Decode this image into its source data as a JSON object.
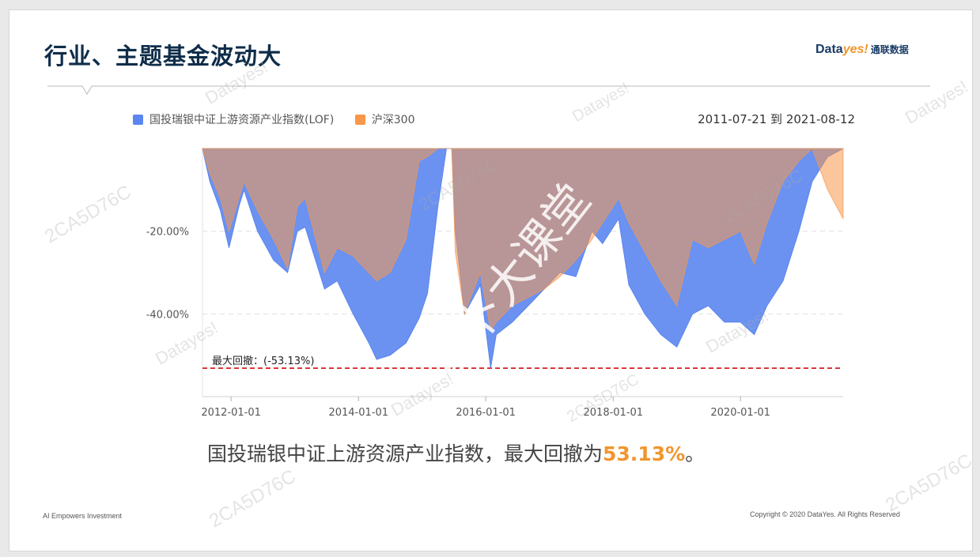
{
  "page": {
    "title": "行业、主题基金波动大",
    "logo": {
      "part1": "Data",
      "part2": "yes!",
      "part3": "通联数据"
    },
    "date_range": "2011-07-21 到 2021-08-12",
    "caption": {
      "text": "国投瑞银中证上游资源产业指数，最大回撤为",
      "highlight": "53.13%",
      "suffix": "。"
    },
    "footer_left": "AI Empowers Investment",
    "footer_right": "Copyright © 2020 DataYes. All Rights Reserved",
    "watermarks": [
      "Datayes!",
      "2CA5D76C"
    ],
    "overlay_watermark": "萝卜大课堂"
  },
  "chart_data": {
    "type": "area",
    "title": "",
    "x_ticks": [
      "2012-01-01",
      "2014-01-01",
      "2016-01-01",
      "2018-01-01",
      "2020-01-01"
    ],
    "y_ticks": [
      "-20.00%",
      "-40.00%"
    ],
    "ylim": [
      -60,
      0
    ],
    "xlim": [
      "2011-07-21",
      "2021-08-12"
    ],
    "grid": "horizontal dashed",
    "legend_position": "top-left",
    "max_drawdown_label": "最大回撤：(-53.13%)",
    "max_drawdown_value": -53.13,
    "series": [
      {
        "name": "国投瑞银中证上游资源产业指数(LOF)",
        "color": "#5b86f0",
        "points": [
          [
            "2011-07-21",
            0
          ],
          [
            "2011-09-01",
            -8
          ],
          [
            "2011-11-01",
            -15
          ],
          [
            "2011-12-20",
            -24
          ],
          [
            "2012-02-15",
            -14
          ],
          [
            "2012-03-15",
            -10
          ],
          [
            "2012-06-01",
            -20
          ],
          [
            "2012-09-01",
            -27
          ],
          [
            "2012-11-20",
            -30
          ],
          [
            "2013-01-15",
            -20
          ],
          [
            "2013-03-01",
            -19
          ],
          [
            "2013-06-20",
            -34
          ],
          [
            "2013-09-01",
            -32
          ],
          [
            "2013-12-01",
            -40
          ],
          [
            "2014-03-01",
            -47
          ],
          [
            "2014-04-15",
            -51
          ],
          [
            "2014-07-01",
            -50
          ],
          [
            "2014-10-01",
            -47
          ],
          [
            "2014-12-15",
            -41
          ],
          [
            "2015-02-01",
            -35
          ],
          [
            "2015-04-01",
            -14
          ],
          [
            "2015-05-20",
            0
          ],
          [
            "2015-06-20",
            0
          ],
          [
            "2015-07-10",
            -20
          ],
          [
            "2015-09-01",
            -40
          ],
          [
            "2015-12-01",
            -33
          ],
          [
            "2016-01-29",
            -53.13
          ],
          [
            "2016-03-01",
            -45
          ],
          [
            "2016-06-01",
            -42
          ],
          [
            "2016-09-01",
            -38
          ],
          [
            "2016-12-01",
            -34
          ],
          [
            "2017-03-01",
            -30
          ],
          [
            "2017-06-01",
            -31
          ],
          [
            "2017-09-01",
            -20
          ],
          [
            "2017-11-01",
            -23
          ],
          [
            "2018-02-01",
            -17
          ],
          [
            "2018-04-01",
            -33
          ],
          [
            "2018-07-01",
            -40
          ],
          [
            "2018-10-01",
            -45
          ],
          [
            "2019-01-01",
            -48
          ],
          [
            "2019-04-01",
            -40
          ],
          [
            "2019-07-01",
            -38
          ],
          [
            "2019-10-01",
            -42
          ],
          [
            "2020-01-01",
            -42
          ],
          [
            "2020-03-20",
            -45
          ],
          [
            "2020-06-01",
            -38
          ],
          [
            "2020-09-01",
            -32
          ],
          [
            "2020-12-01",
            -20
          ],
          [
            "2021-02-15",
            -8
          ],
          [
            "2021-05-15",
            -2
          ],
          [
            "2021-08-12",
            0
          ]
        ]
      },
      {
        "name": "沪深300",
        "color": "#f8974a",
        "points": [
          [
            "2011-07-21",
            0
          ],
          [
            "2011-09-01",
            -6
          ],
          [
            "2011-11-01",
            -12
          ],
          [
            "2011-12-20",
            -20
          ],
          [
            "2012-02-15",
            -12
          ],
          [
            "2012-03-15",
            -8
          ],
          [
            "2012-06-01",
            -15
          ],
          [
            "2012-09-01",
            -22
          ],
          [
            "2012-11-20",
            -29
          ],
          [
            "2013-01-15",
            -14
          ],
          [
            "2013-03-01",
            -12
          ],
          [
            "2013-06-20",
            -30
          ],
          [
            "2013-09-01",
            -24
          ],
          [
            "2013-12-01",
            -26
          ],
          [
            "2014-03-01",
            -30
          ],
          [
            "2014-04-15",
            -32
          ],
          [
            "2014-07-01",
            -30
          ],
          [
            "2014-10-01",
            -22
          ],
          [
            "2014-12-15",
            -3
          ],
          [
            "2015-02-01",
            -2
          ],
          [
            "2015-04-01",
            0
          ],
          [
            "2015-05-20",
            0
          ],
          [
            "2015-06-20",
            0
          ],
          [
            "2015-07-10",
            -25
          ],
          [
            "2015-09-01",
            -40
          ],
          [
            "2015-12-01",
            -30
          ],
          [
            "2016-01-29",
            -44
          ],
          [
            "2016-03-01",
            -42
          ],
          [
            "2016-06-01",
            -38
          ],
          [
            "2016-09-01",
            -36
          ],
          [
            "2016-12-01",
            -34
          ],
          [
            "2017-03-01",
            -31
          ],
          [
            "2017-06-01",
            -27
          ],
          [
            "2017-09-01",
            -22
          ],
          [
            "2017-11-01",
            -18
          ],
          [
            "2018-02-01",
            -12
          ],
          [
            "2018-04-01",
            -18
          ],
          [
            "2018-07-01",
            -25
          ],
          [
            "2018-10-01",
            -32
          ],
          [
            "2019-01-01",
            -38
          ],
          [
            "2019-04-01",
            -22
          ],
          [
            "2019-07-01",
            -24
          ],
          [
            "2019-10-01",
            -22
          ],
          [
            "2020-01-01",
            -20
          ],
          [
            "2020-03-20",
            -28
          ],
          [
            "2020-06-01",
            -18
          ],
          [
            "2020-09-01",
            -8
          ],
          [
            "2020-12-01",
            -3
          ],
          [
            "2021-02-15",
            0
          ],
          [
            "2021-05-15",
            -10
          ],
          [
            "2021-08-12",
            -17
          ]
        ]
      }
    ]
  }
}
